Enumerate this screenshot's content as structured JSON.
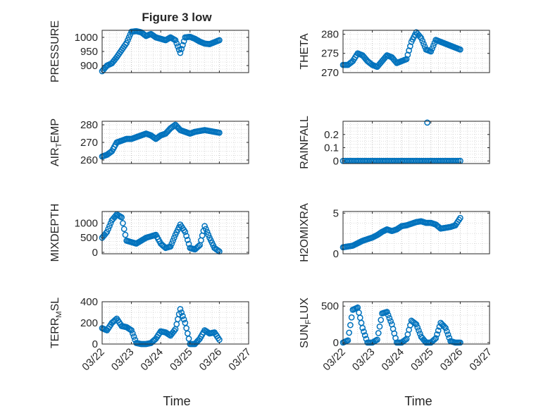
{
  "figure": {
    "title": "Figure 3 low",
    "xlabel": "Time",
    "date_ticks": [
      "03/22",
      "03/23",
      "03/24",
      "03/25",
      "03/26",
      "03/27"
    ]
  },
  "colors": {
    "series": "#0072BD",
    "axis": "#262626",
    "grid": "#B8B8B8"
  },
  "chart_data": [
    {
      "type": "scatter",
      "position": "row1-left",
      "ylabel": "PRESSURE",
      "xlim": [
        "03/22",
        "03/27"
      ],
      "ylim": [
        875,
        1025
      ],
      "yticks": [
        900,
        950,
        1000
      ],
      "grid": true,
      "x": [
        "03/22 00:00",
        "03/22 04:00",
        "03/22 08:00",
        "03/22 12:00",
        "03/22 16:00",
        "03/22 20:00",
        "03/23 00:00",
        "03/23 04:00",
        "03/23 08:00",
        "03/23 12:00",
        "03/23 16:00",
        "03/23 20:00",
        "03/24 00:00",
        "03/24 04:00",
        "03/24 08:00",
        "03/24 12:00",
        "03/24 16:00",
        "03/24 20:00",
        "03/25 00:00",
        "03/25 04:00",
        "03/25 08:00",
        "03/25 12:00",
        "03/25 16:00",
        "03/25 20:00",
        "03/26 00:00"
      ],
      "y": [
        880,
        900,
        908,
        930,
        955,
        980,
        1020,
        1022,
        1018,
        1005,
        1012,
        1000,
        995,
        990,
        1000,
        990,
        945,
        1000,
        1002,
        995,
        985,
        978,
        976,
        983,
        990
      ]
    },
    {
      "type": "scatter",
      "position": "row1-right",
      "ylabel": "THETA",
      "xlim": [
        "03/22",
        "03/27"
      ],
      "ylim": [
        270,
        281
      ],
      "yticks": [
        270,
        275,
        280
      ],
      "grid": true,
      "x": [
        "03/22 00:00",
        "03/22 04:00",
        "03/22 08:00",
        "03/22 12:00",
        "03/22 16:00",
        "03/22 20:00",
        "03/23 00:00",
        "03/23 04:00",
        "03/23 08:00",
        "03/23 12:00",
        "03/23 16:00",
        "03/23 20:00",
        "03/24 00:00",
        "03/24 04:00",
        "03/24 08:00",
        "03/24 12:00",
        "03/24 16:00",
        "03/24 20:00",
        "03/25 00:00",
        "03/25 04:00",
        "03/25 08:00",
        "03/25 12:00",
        "03/25 16:00",
        "03/25 20:00",
        "03/26 00:00"
      ],
      "y": [
        272,
        272,
        273,
        275,
        274.5,
        273,
        272,
        271.5,
        273,
        274.5,
        274,
        272.5,
        273,
        273.5,
        278,
        280.5,
        279,
        276,
        275.5,
        278.5,
        278,
        277.5,
        277,
        276.5,
        276
      ]
    },
    {
      "type": "scatter",
      "position": "row2-left",
      "ylabel": "AIR_TEMP",
      "xlim": [
        "03/22",
        "03/27"
      ],
      "ylim": [
        258,
        282
      ],
      "yticks": [
        260,
        270,
        280
      ],
      "grid": true,
      "x": [
        "03/22 00:00",
        "03/22 04:00",
        "03/22 08:00",
        "03/22 12:00",
        "03/22 16:00",
        "03/22 20:00",
        "03/23 00:00",
        "03/23 04:00",
        "03/23 08:00",
        "03/23 12:00",
        "03/23 16:00",
        "03/23 20:00",
        "03/24 00:00",
        "03/24 04:00",
        "03/24 08:00",
        "03/24 12:00",
        "03/24 16:00",
        "03/24 20:00",
        "03/25 00:00",
        "03/25 04:00",
        "03/25 08:00",
        "03/25 12:00",
        "03/25 16:00",
        "03/25 20:00",
        "03/26 00:00"
      ],
      "y": [
        262,
        263,
        265,
        270,
        271,
        272,
        272,
        273,
        274,
        275,
        274,
        272,
        274,
        275,
        278,
        280,
        277,
        276,
        275,
        276,
        276.5,
        277,
        276.5,
        276,
        275.5
      ]
    },
    {
      "type": "scatter",
      "position": "row2-right",
      "ylabel": "RAINFALL",
      "xlim": [
        "03/22",
        "03/27"
      ],
      "ylim": [
        -0.02,
        0.3
      ],
      "yticks": [
        0,
        0.1,
        0.2
      ],
      "grid": true,
      "x": [
        "03/22 00:00",
        "03/22 06:00",
        "03/22 12:00",
        "03/22 18:00",
        "03/23 00:00",
        "03/23 06:00",
        "03/23 12:00",
        "03/23 18:00",
        "03/24 00:00",
        "03/24 06:00",
        "03/24 12:00",
        "03/24 18:00",
        "03/25 00:00",
        "03/25 06:00",
        "03/25 12:00",
        "03/25 18:00",
        "03/26 00:00",
        "03/24 21:00"
      ],
      "y": [
        0,
        0,
        0,
        0,
        0,
        0,
        0,
        0,
        0,
        0,
        0,
        0,
        0,
        0,
        0,
        0,
        0,
        0.29
      ]
    },
    {
      "type": "scatter",
      "position": "row3-left",
      "ylabel": "MIXDEPTH",
      "xlim": [
        "03/22",
        "03/27"
      ],
      "ylim": [
        -50,
        1400
      ],
      "yticks": [
        0,
        500,
        1000
      ],
      "grid": true,
      "x": [
        "03/22 00:00",
        "03/22 04:00",
        "03/22 08:00",
        "03/22 12:00",
        "03/22 16:00",
        "03/22 20:00",
        "03/23 00:00",
        "03/23 04:00",
        "03/23 08:00",
        "03/23 12:00",
        "03/23 16:00",
        "03/23 20:00",
        "03/24 00:00",
        "03/24 04:00",
        "03/24 08:00",
        "03/24 12:00",
        "03/24 16:00",
        "03/24 20:00",
        "03/25 00:00",
        "03/25 04:00",
        "03/25 08:00",
        "03/25 12:00",
        "03/25 16:00",
        "03/25 20:00",
        "03/26 00:00"
      ],
      "y": [
        500,
        700,
        1100,
        1300,
        1200,
        400,
        350,
        300,
        400,
        500,
        550,
        600,
        300,
        150,
        200,
        600,
        950,
        700,
        150,
        100,
        250,
        900,
        500,
        150,
        30
      ]
    },
    {
      "type": "scatter",
      "position": "row3-right",
      "ylabel": "H2OMIXRA",
      "xlim": [
        "03/22",
        "03/27"
      ],
      "ylim": [
        0,
        5.2
      ],
      "yticks": [
        0,
        5
      ],
      "grid": true,
      "x": [
        "03/22 00:00",
        "03/22 04:00",
        "03/22 08:00",
        "03/22 12:00",
        "03/22 16:00",
        "03/22 20:00",
        "03/23 00:00",
        "03/23 04:00",
        "03/23 08:00",
        "03/23 12:00",
        "03/23 16:00",
        "03/23 20:00",
        "03/24 00:00",
        "03/24 04:00",
        "03/24 08:00",
        "03/24 12:00",
        "03/24 16:00",
        "03/24 20:00",
        "03/25 00:00",
        "03/25 04:00",
        "03/25 08:00",
        "03/25 12:00",
        "03/25 16:00",
        "03/25 20:00",
        "03/26 00:00"
      ],
      "y": [
        0.8,
        0.9,
        1.0,
        1.3,
        1.6,
        1.8,
        2.0,
        2.3,
        2.7,
        3.0,
        2.8,
        3.0,
        3.4,
        3.5,
        3.7,
        3.9,
        4.0,
        3.8,
        3.8,
        3.6,
        3.1,
        3.2,
        3.3,
        3.5,
        4.4
      ]
    },
    {
      "type": "scatter",
      "position": "row4-left",
      "ylabel": "TERR_MSL",
      "xlim": [
        "03/22",
        "03/27"
      ],
      "ylim": [
        0,
        400
      ],
      "yticks": [
        0,
        200,
        400
      ],
      "grid": true,
      "x": [
        "03/22 00:00",
        "03/22 04:00",
        "03/22 08:00",
        "03/22 12:00",
        "03/22 16:00",
        "03/22 20:00",
        "03/23 00:00",
        "03/23 04:00",
        "03/23 08:00",
        "03/23 12:00",
        "03/23 16:00",
        "03/23 20:00",
        "03/24 00:00",
        "03/24 04:00",
        "03/24 08:00",
        "03/24 12:00",
        "03/24 16:00",
        "03/24 20:00",
        "03/25 00:00",
        "03/25 04:00",
        "03/25 08:00",
        "03/25 12:00",
        "03/25 16:00",
        "03/25 20:00",
        "03/26 00:00"
      ],
      "y": [
        150,
        130,
        200,
        240,
        170,
        160,
        130,
        10,
        0,
        0,
        10,
        50,
        120,
        110,
        80,
        140,
        330,
        200,
        0,
        0,
        50,
        130,
        100,
        110,
        40
      ]
    },
    {
      "type": "scatter",
      "position": "row4-right",
      "ylabel": "SUN_FLUX",
      "xlim": [
        "03/22",
        "03/27"
      ],
      "ylim": [
        -20,
        560
      ],
      "yticks": [
        0,
        500
      ],
      "grid": true,
      "x": [
        "03/22 00:00",
        "03/22 04:00",
        "03/22 08:00",
        "03/22 12:00",
        "03/22 16:00",
        "03/22 20:00",
        "03/23 00:00",
        "03/23 04:00",
        "03/23 08:00",
        "03/23 12:00",
        "03/23 16:00",
        "03/23 20:00",
        "03/24 00:00",
        "03/24 04:00",
        "03/24 08:00",
        "03/24 12:00",
        "03/24 16:00",
        "03/24 20:00",
        "03/25 00:00",
        "03/25 04:00",
        "03/25 08:00",
        "03/25 12:00",
        "03/25 16:00",
        "03/25 20:00",
        "03/26 00:00"
      ],
      "y": [
        0,
        30,
        450,
        480,
        200,
        0,
        0,
        40,
        400,
        420,
        250,
        0,
        0,
        50,
        300,
        250,
        80,
        0,
        0,
        60,
        270,
        200,
        20,
        0,
        0
      ]
    }
  ]
}
